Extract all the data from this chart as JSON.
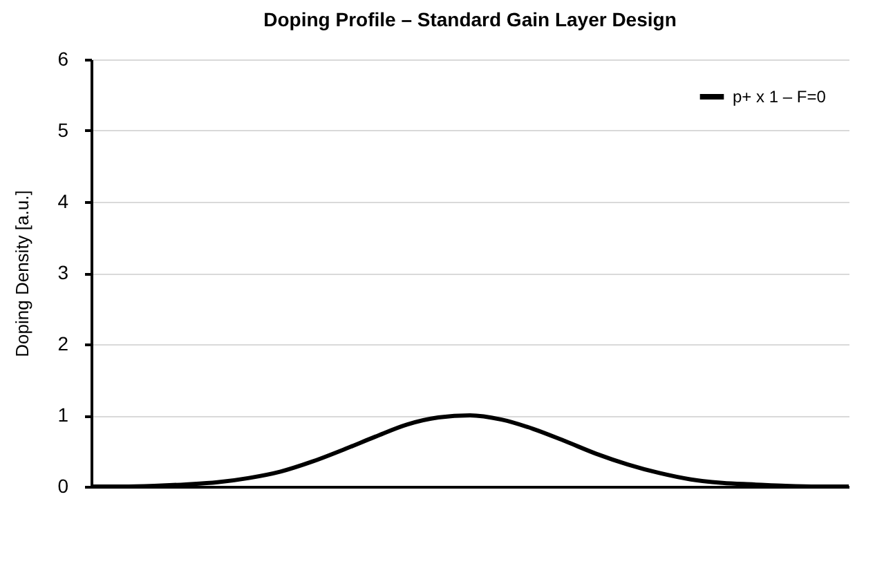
{
  "chart_data": {
    "type": "line",
    "title": "Doping Profile – Standard Gain Layer Design",
    "ylabel": "Doping Density [a.u.]",
    "categories": [
      null,
      null,
      null,
      null,
      null,
      null,
      null,
      null,
      null,
      null,
      null,
      null,
      null,
      null,
      null,
      null,
      null,
      null,
      null,
      null,
      null,
      null,
      null,
      null,
      null
    ],
    "series": [
      {
        "name": "p+ x 1 – F=0",
        "color": "#000000",
        "values": [
          0.0,
          0.0,
          0.01,
          0.03,
          0.06,
          0.12,
          0.21,
          0.35,
          0.52,
          0.7,
          0.87,
          0.97,
          1.0,
          0.94,
          0.81,
          0.64,
          0.46,
          0.31,
          0.19,
          0.1,
          0.05,
          0.03,
          0.01,
          0.0,
          0.0
        ]
      }
    ],
    "ylim": [
      0,
      6
    ],
    "yticks": [
      0,
      1,
      2,
      3,
      4,
      5,
      6
    ],
    "grid": "y",
    "legend": "top right",
    "marker": "none",
    "line_style": "solid"
  }
}
